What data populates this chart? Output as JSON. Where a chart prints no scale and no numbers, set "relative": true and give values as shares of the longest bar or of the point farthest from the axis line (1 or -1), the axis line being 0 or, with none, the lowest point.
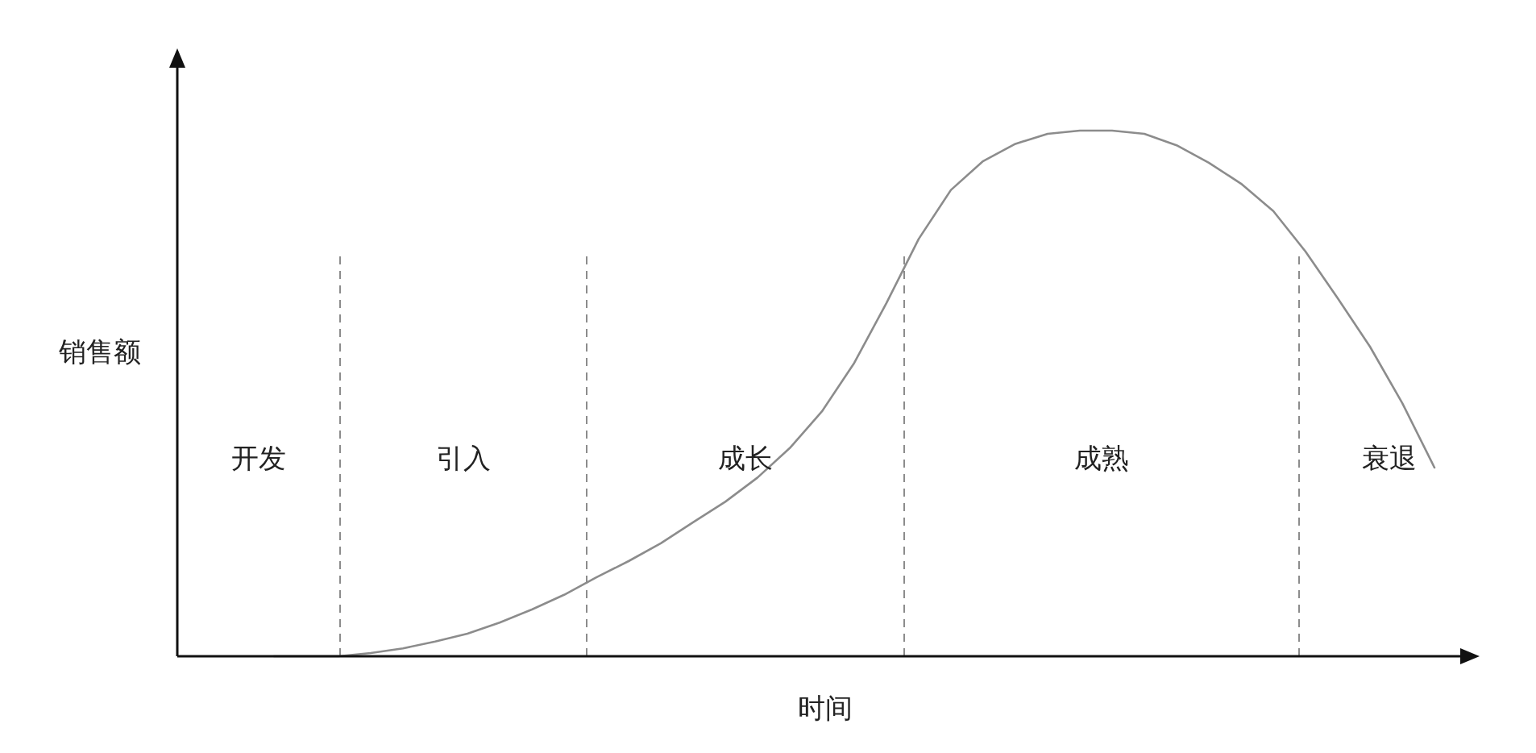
{
  "chart_data": {
    "type": "line",
    "relative": true,
    "xlabel": "时间",
    "ylabel": "销售额",
    "categories": [
      null,
      null,
      null,
      null,
      null,
      null,
      null,
      null,
      null,
      null,
      null,
      null,
      null,
      null,
      null,
      null,
      null,
      null,
      null,
      null,
      null,
      null,
      null,
      null,
      null,
      null,
      null,
      null,
      null,
      null,
      null,
      null,
      null,
      null,
      null,
      null,
      null,
      null,
      null,
      null,
      null
    ],
    "series": [
      {
        "color": "#8c8c8c",
        "values": [
          null,
          null,
          null,
          0,
          0,
          0,
          0.006,
          0.015,
          0.028,
          0.043,
          0.064,
          0.089,
          0.117,
          0.15,
          0.181,
          0.215,
          0.255,
          0.294,
          0.34,
          0.396,
          0.466,
          0.558,
          0.672,
          0.794,
          0.887,
          0.942,
          0.975,
          0.994,
          1,
          1,
          0.994,
          0.972,
          0.939,
          0.899,
          0.847,
          0.77,
          0.681,
          0.589,
          0.482,
          0.359,
          null
        ]
      }
    ],
    "annotations": [
      "开发",
      "引入",
      "成长",
      "成熟",
      "衰退"
    ],
    "grid": false
  }
}
